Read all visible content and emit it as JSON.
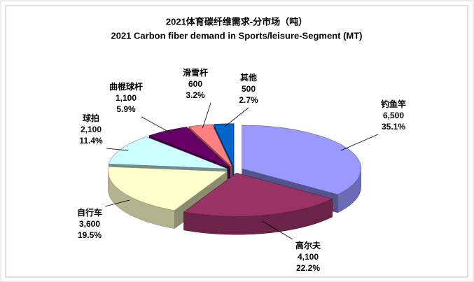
{
  "chart_data": {
    "type": "pie3d",
    "title": "2021体育碳纤维需求-分市场（吨）",
    "subtitle": "2021 Carbon fiber demand in Sports/leisure-Segment (MT)",
    "categories": [
      "钓鱼竿",
      "高尔夫",
      "自行车",
      "球拍",
      "曲棍球杆",
      "滑雪杆",
      "其他"
    ],
    "values": [
      6500,
      4100,
      3600,
      2100,
      1100,
      600,
      500
    ],
    "value_labels": [
      "6,500",
      "4,100",
      "3,600",
      "2,100",
      "1,100",
      "600",
      "500"
    ],
    "percent_labels": [
      "35.1%",
      "22.2%",
      "19.5%",
      "11.4%",
      "5.9%",
      "3.2%",
      "2.7%"
    ],
    "colors": [
      "#9999ff",
      "#993366",
      "#ffffcc",
      "#ccffff",
      "#660066",
      "#ff8080",
      "#0066cc"
    ]
  }
}
